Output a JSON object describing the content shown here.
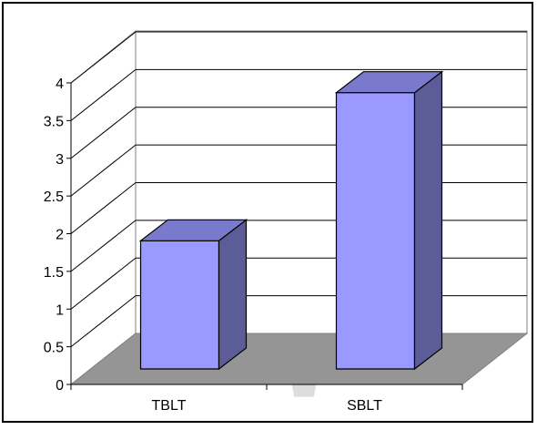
{
  "chart_data": {
    "type": "bar",
    "style": "3d-clustered-column",
    "categories": [
      "TBLT",
      "SBLT"
    ],
    "values": [
      1.67,
      3.6
    ],
    "ylim": [
      0,
      4
    ],
    "yticks": [
      "0",
      "0.5",
      "1",
      "1.5",
      "2",
      "2.5",
      "3",
      "3.5",
      "4"
    ],
    "title": "",
    "xlabel": "",
    "ylabel": "",
    "grid": true,
    "legend": "none",
    "colors": {
      "bar_front": "#9999ff",
      "bar_side": "#5c5c99",
      "bar_top": "#7a7acc",
      "floor": "#959595",
      "grid": "#000000"
    }
  }
}
